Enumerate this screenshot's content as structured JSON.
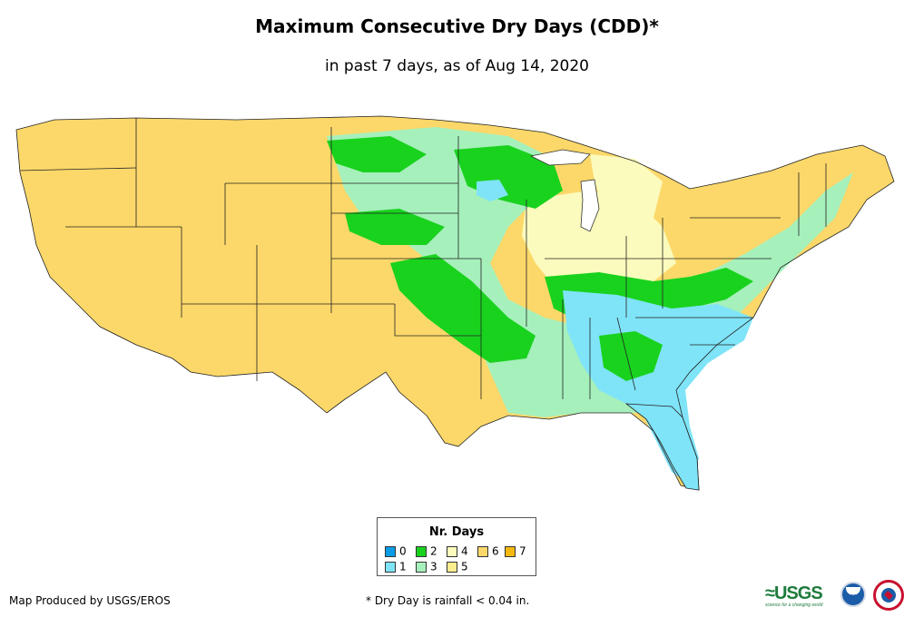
{
  "title": "Maximum Consecutive Dry Days (CDD)*",
  "subtitle": "in past 7 days, as of Aug 14, 2020",
  "legend": {
    "title": "Nr. Days",
    "items": [
      {
        "label": "0",
        "color": "#0b9ce6"
      },
      {
        "label": "1",
        "color": "#7fe4f7"
      },
      {
        "label": "2",
        "color": "#19d21e"
      },
      {
        "label": "3",
        "color": "#a6f0bb"
      },
      {
        "label": "4",
        "color": "#fbfbbd"
      },
      {
        "label": "5",
        "color": "#fbec8f"
      },
      {
        "label": "6",
        "color": "#fcd86a"
      },
      {
        "label": "7",
        "color": "#f5b80f"
      }
    ]
  },
  "credit": "Map Produced by USGS/EROS",
  "footnote": "* Dry Day is rainfall < 0.04 in.",
  "logos": {
    "usgs": "≈USGS",
    "usgs_tagline": "science for a changing world",
    "noaa": "noaa"
  }
}
